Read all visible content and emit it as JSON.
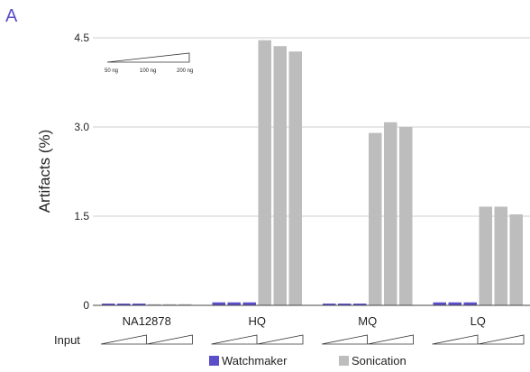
{
  "panel_label": "A",
  "chart_data": {
    "type": "bar",
    "title": "",
    "xlabel": "",
    "ylabel": "Artifacts (%)",
    "ylim": [
      0,
      4.5
    ],
    "yticks": [
      "0",
      "1.5",
      "3.0",
      "4.5"
    ],
    "grid": true,
    "categories": [
      "NA12878",
      "HQ",
      "MQ",
      "LQ"
    ],
    "sub_categories": [
      "50 ng",
      "100 ng",
      "200 ng"
    ],
    "series": [
      {
        "name": "Watchmaker",
        "color": "#5b4ec9",
        "values": [
          [
            0.03,
            0.03,
            0.03
          ],
          [
            0.05,
            0.05,
            0.05
          ],
          [
            0.03,
            0.03,
            0.03
          ],
          [
            0.05,
            0.05,
            0.05
          ]
        ]
      },
      {
        "name": "Sonication",
        "color": "#bdbdbd",
        "values": [
          [
            0.02,
            0.02,
            0.02
          ],
          [
            4.46,
            4.36,
            4.27
          ],
          [
            2.9,
            3.08,
            3.0
          ],
          [
            1.66,
            1.66,
            1.53
          ]
        ]
      }
    ],
    "input_row_label": "Input",
    "inset_labels": [
      "50 ng",
      "100 ng",
      "200 ng"
    ],
    "legend_position": "bottom-center"
  }
}
